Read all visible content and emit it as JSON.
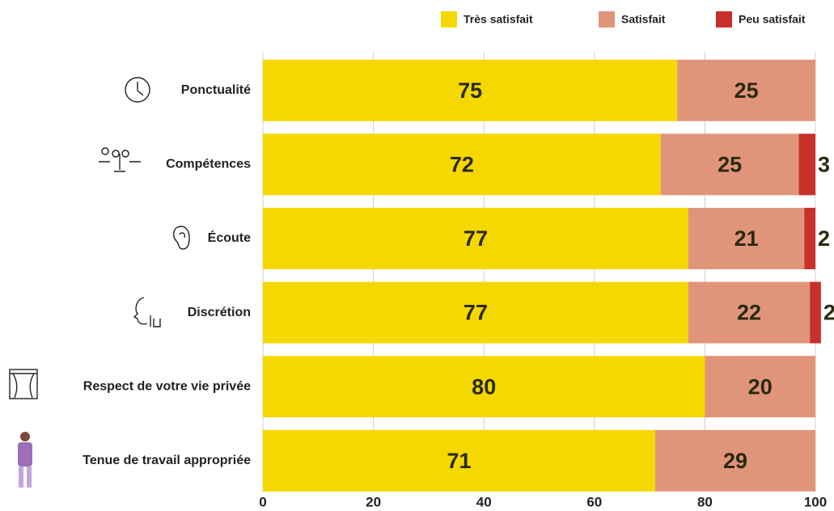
{
  "chart_data": {
    "type": "stacked-barh",
    "categories": [
      "Ponctualité",
      "Compétences",
      "Écoute",
      "Discrétion",
      "Respect de votre vie privée",
      "Tenue de travail appropriée"
    ],
    "series": [
      {
        "name": "Très satisfait",
        "color": "#f5d800",
        "values": [
          75,
          72,
          77,
          77,
          80,
          71
        ]
      },
      {
        "name": "Satisfait",
        "color": "#e0957a",
        "values": [
          25,
          25,
          21,
          22,
          20,
          29
        ]
      },
      {
        "name": "Peu satisfait",
        "color": "#c8302a",
        "values": [
          null,
          3,
          2,
          2,
          null,
          null
        ]
      }
    ],
    "xlim": [
      0,
      100
    ],
    "xticks": [
      0,
      20,
      40,
      60,
      80,
      100
    ],
    "grid": true
  }
}
